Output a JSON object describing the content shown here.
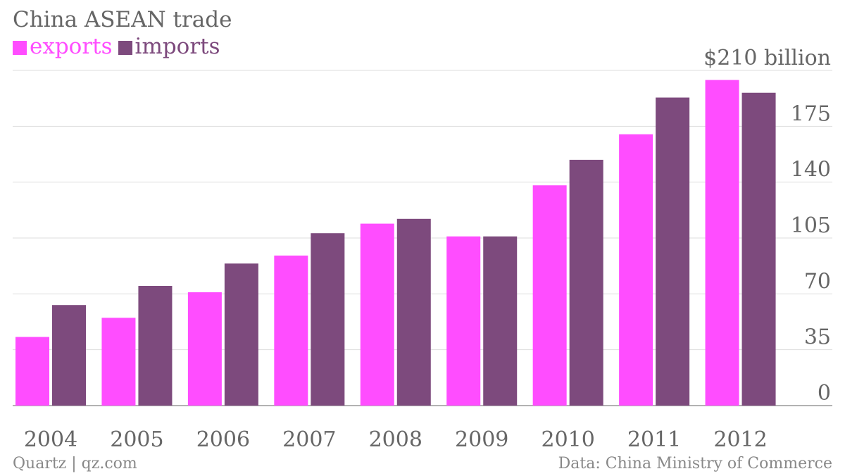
{
  "title": "China ASEAN trade",
  "legend": [
    {
      "label": "exports",
      "color": "#ff4dff"
    },
    {
      "label": "imports",
      "color": "#7d4a7d"
    }
  ],
  "footer": {
    "source_left": "Quartz | qz.com",
    "source_right": "Data: China Ministry of Commerce"
  },
  "chart_data": {
    "type": "bar",
    "title": "China ASEAN trade",
    "categories": [
      "2004",
      "2005",
      "2006",
      "2007",
      "2008",
      "2009",
      "2010",
      "2011",
      "2012"
    ],
    "series": [
      {
        "name": "exports",
        "color": "#ff4dff",
        "values": [
          43,
          55,
          71,
          94,
          114,
          106,
          138,
          170,
          204
        ]
      },
      {
        "name": "imports",
        "color": "#7d4a7d",
        "values": [
          63,
          75,
          89,
          108,
          117,
          106,
          154,
          193,
          196
        ]
      }
    ],
    "ylim": [
      0,
      210
    ],
    "yticks": [
      0,
      35,
      70,
      105,
      140,
      175
    ],
    "ytick_top_label": "$210 billion",
    "grid": true,
    "legend_position": "top-left"
  }
}
